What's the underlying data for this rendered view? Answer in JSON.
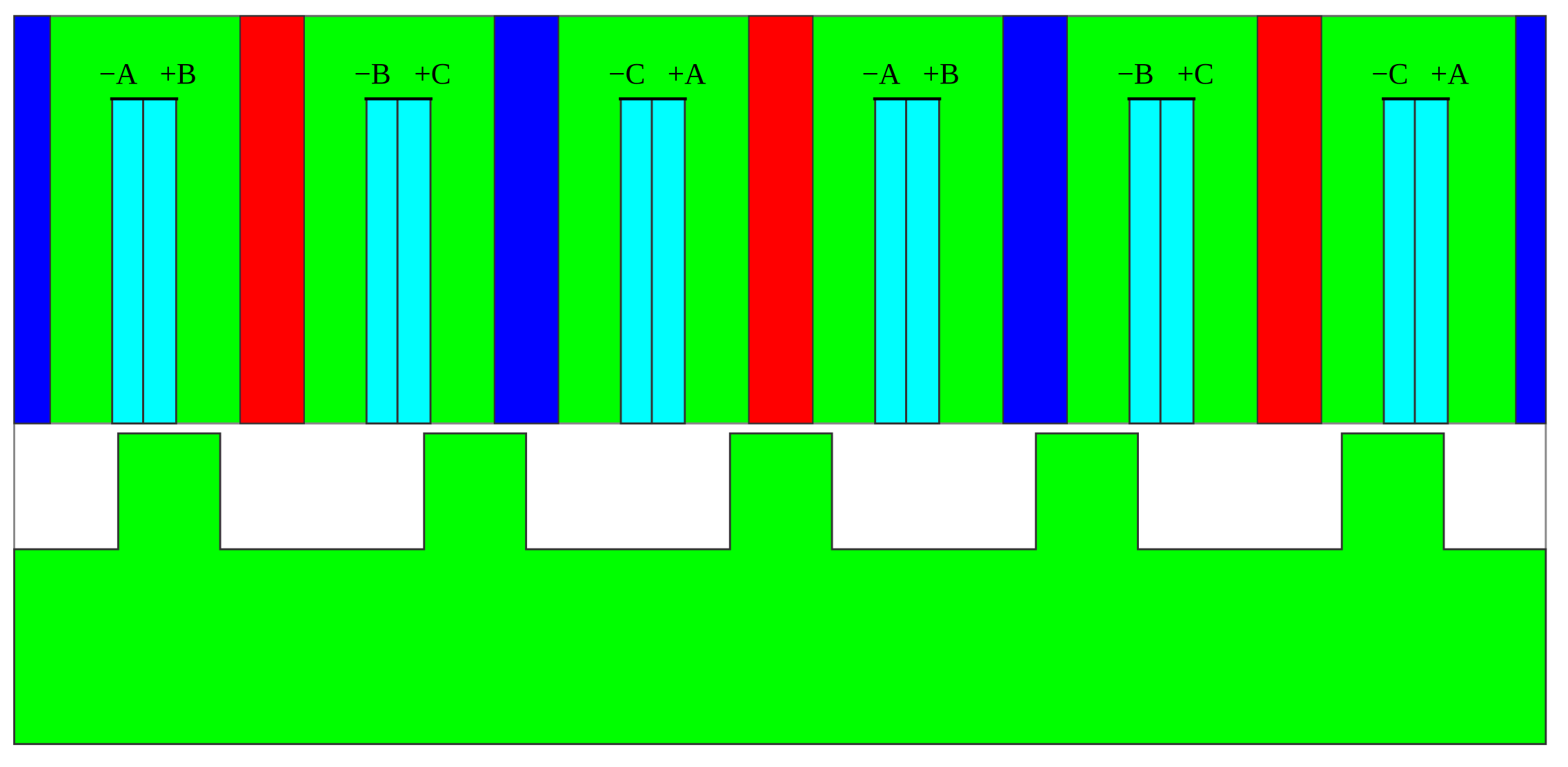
{
  "slots": [
    {
      "left": "−A",
      "right": "+B"
    },
    {
      "left": "−B",
      "right": "+C"
    },
    {
      "left": "−C",
      "right": "+A"
    },
    {
      "left": "−A",
      "right": "+B"
    },
    {
      "left": "−B",
      "right": "+C"
    },
    {
      "left": "−C",
      "right": "+A"
    }
  ]
}
